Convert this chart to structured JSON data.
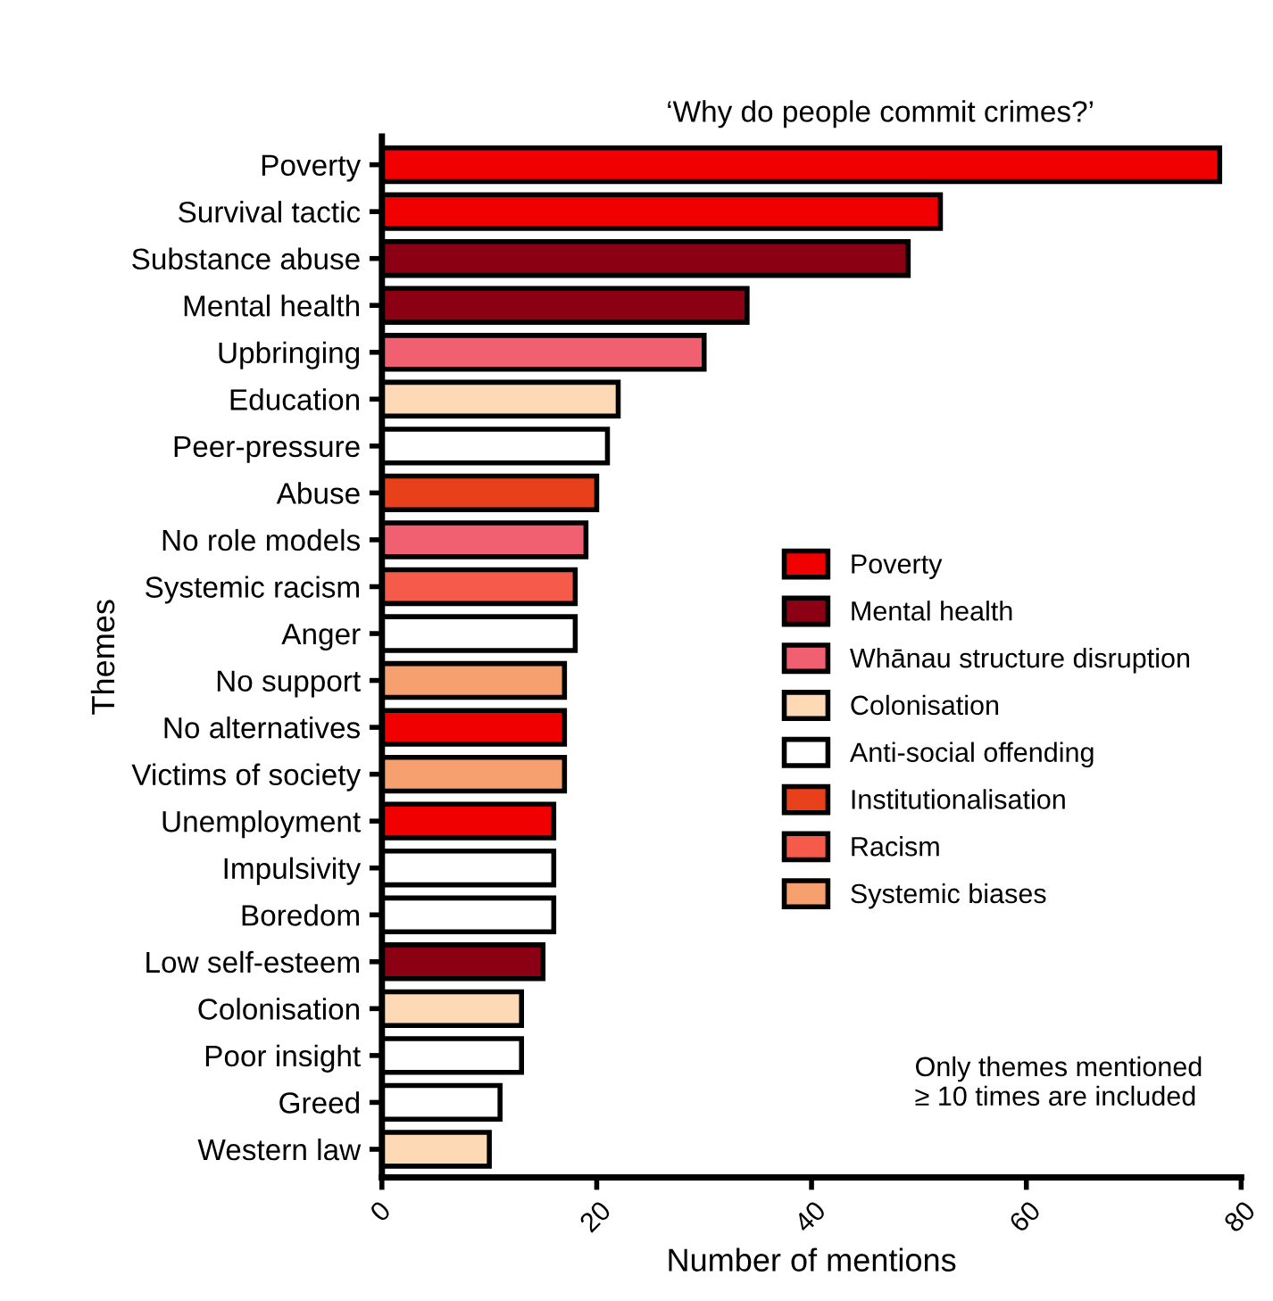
{
  "chart_data": {
    "type": "bar",
    "orientation": "horizontal",
    "title": "‘Why do people commit crimes?’",
    "xlabel": "Number of mentions",
    "ylabel": "Themes",
    "categories": [
      "Poverty",
      "Survival tactic",
      "Substance abuse",
      "Mental health",
      "Upbringing",
      "Education",
      "Peer-pressure",
      "Abuse",
      "No role models",
      "Systemic racism",
      "Anger",
      "No support",
      "No alternatives",
      "Victims of society",
      "Unemployment",
      "Impulsivity",
      "Boredom",
      "Low self-esteem",
      "Colonisation",
      "Poor insight",
      "Greed",
      "Western law"
    ],
    "series": [
      {
        "name": "Poverty",
        "color": "#f00000",
        "values": [
          78,
          52,
          null,
          null,
          null,
          null,
          null,
          null,
          null,
          null,
          null,
          null,
          17,
          null,
          16,
          null,
          null,
          null,
          null,
          null,
          null,
          null
        ]
      },
      {
        "name": "Mental health",
        "color": "#8b0012",
        "values": [
          null,
          null,
          49,
          34,
          null,
          null,
          null,
          null,
          null,
          null,
          null,
          null,
          null,
          null,
          null,
          null,
          null,
          15,
          null,
          null,
          null,
          null
        ]
      },
      {
        "name": "Whānau structure disruption",
        "color": "#f06070",
        "values": [
          null,
          null,
          null,
          null,
          30,
          null,
          null,
          null,
          19,
          null,
          null,
          null,
          null,
          null,
          null,
          null,
          null,
          null,
          null,
          null,
          null,
          null
        ]
      },
      {
        "name": "Colonisation",
        "color": "#fdd9b5",
        "values": [
          null,
          null,
          null,
          null,
          null,
          22,
          null,
          null,
          null,
          null,
          null,
          null,
          null,
          null,
          null,
          null,
          null,
          null,
          13,
          null,
          null,
          10
        ]
      },
      {
        "name": "Anti-social offending",
        "color": "#ffffff",
        "values": [
          null,
          null,
          null,
          null,
          null,
          null,
          21,
          null,
          null,
          null,
          18,
          null,
          null,
          null,
          null,
          16,
          16,
          null,
          null,
          13,
          11,
          null
        ]
      },
      {
        "name": "Institutionalisation",
        "color": "#e8401a",
        "values": [
          null,
          null,
          null,
          null,
          null,
          null,
          null,
          20,
          null,
          null,
          null,
          null,
          null,
          null,
          null,
          null,
          null,
          null,
          null,
          null,
          null,
          null
        ]
      },
      {
        "name": "Racism",
        "color": "#f65a4a",
        "values": [
          null,
          null,
          null,
          null,
          null,
          null,
          null,
          null,
          null,
          18,
          null,
          null,
          null,
          null,
          null,
          null,
          null,
          null,
          null,
          null,
          null,
          null
        ]
      },
      {
        "name": "Systemic biases",
        "color": "#f6a070",
        "values": [
          null,
          null,
          null,
          null,
          null,
          null,
          null,
          null,
          null,
          null,
          null,
          17,
          null,
          17,
          null,
          null,
          null,
          null,
          null,
          null,
          null,
          null
        ]
      }
    ],
    "xlim": [
      0,
      80
    ],
    "xticks": [
      0,
      20,
      40,
      60,
      80
    ],
    "legend": "right",
    "grid": false,
    "annotations": [
      "Only themes mentioned\n≥ 10 times are included"
    ]
  }
}
